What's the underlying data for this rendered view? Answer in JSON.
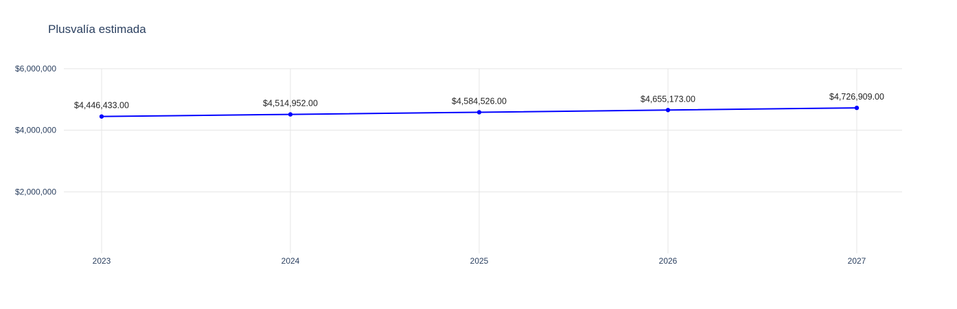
{
  "chart_data": {
    "type": "line",
    "title": "Plusvalía estimada",
    "xlabel": "",
    "ylabel": "",
    "x": [
      "2023",
      "2024",
      "2025",
      "2026",
      "2027"
    ],
    "series": [
      {
        "values": [
          4446433,
          4514952,
          4584526,
          4655173,
          4726909
        ],
        "labels": [
          "$4,446,433.00",
          "$4,514,952.00",
          "$4,584,526.00",
          "$4,655,173.00",
          "$4,726,909.00"
        ],
        "color": "#0000ff",
        "markers": true
      }
    ],
    "yticks": [
      {
        "value": 2000000,
        "label": "$2,000,000"
      },
      {
        "value": 4000000,
        "label": "$4,000,000"
      },
      {
        "value": 6000000,
        "label": "$6,000,000"
      }
    ],
    "ylim": [
      0,
      6000000
    ],
    "grid": true,
    "legend": "none"
  }
}
